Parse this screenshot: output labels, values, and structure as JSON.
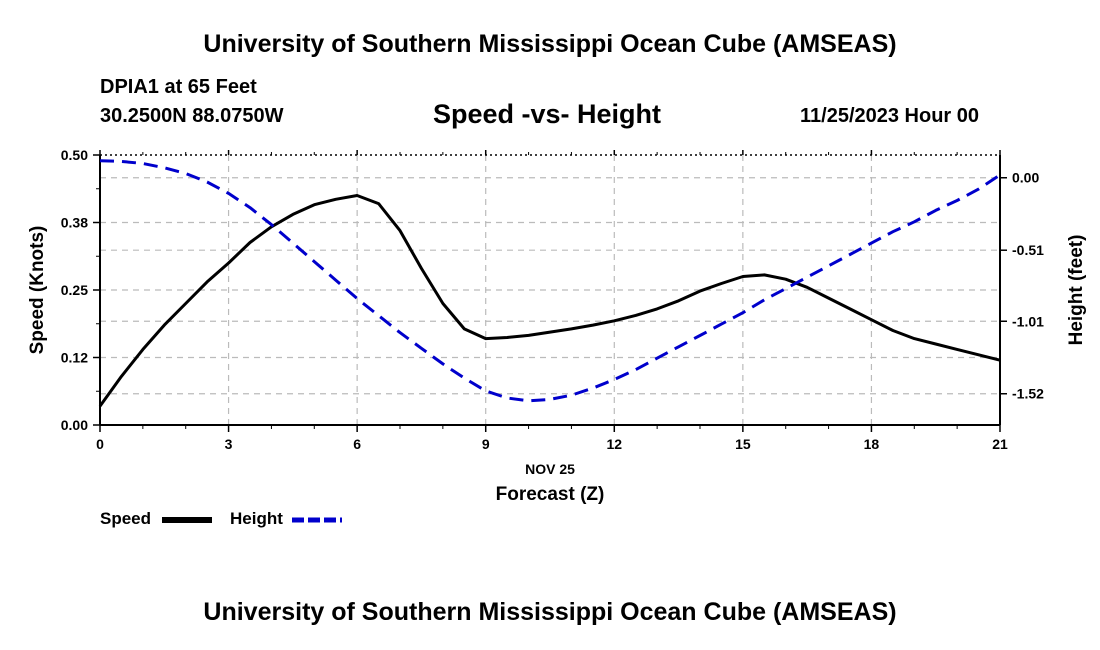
{
  "header": {
    "title": "University of Southern Mississippi Ocean Cube (AMSEAS)",
    "station": "DPIA1 at 65 Feet",
    "coords": "30.2500N  88.0750W",
    "chart_title": "Speed -vs- Height",
    "date_hour": "11/25/2023 Hour 00"
  },
  "footer": {
    "title": "University of Southern Mississippi Ocean Cube (AMSEAS)"
  },
  "legend": {
    "speed_label": "Speed",
    "height_label": "Height"
  },
  "colors": {
    "speed": "#000000",
    "height": "#0000cc",
    "grid": "#bbbbbb"
  },
  "chart_data": {
    "type": "line",
    "title": "Speed -vs- Height",
    "xlabel_date": "NOV 25",
    "xlabel": "Forecast (Z)",
    "ylabel": "Speed (Knots)",
    "ylabel_right": "Height (feet)",
    "xlim": [
      0,
      21
    ],
    "ylim": [
      0,
      0.5
    ],
    "ylim_right": [
      -1.74,
      0.16
    ],
    "x_ticks": [
      0,
      3,
      6,
      9,
      12,
      15,
      18,
      21
    ],
    "y_tick_labels": [
      "0.00",
      "0.12",
      "0.25",
      "0.38",
      "0.50"
    ],
    "y_right_ticks": [
      0.0,
      -0.51,
      -1.01,
      -1.52
    ],
    "y_right_tick_labels": [
      "0.00",
      "-0.51",
      "-1.01",
      "-1.52"
    ],
    "grid": true,
    "series": [
      {
        "name": "Speed",
        "axis": "left",
        "style": "solid",
        "x": [
          0,
          0.5,
          1,
          1.5,
          2,
          2.5,
          3,
          3.5,
          4,
          4.5,
          5,
          5.5,
          6,
          6.5,
          7,
          7.5,
          8,
          8.5,
          9,
          9.5,
          10,
          10.5,
          11,
          11.5,
          12,
          12.5,
          13,
          13.5,
          14,
          14.5,
          15,
          15.5,
          16,
          16.5,
          17,
          17.5,
          18,
          18.5,
          19,
          19.5,
          20,
          20.5,
          21
        ],
        "values": [
          0.035,
          0.09,
          0.14,
          0.185,
          0.225,
          0.265,
          0.3,
          0.338,
          0.367,
          0.39,
          0.408,
          0.418,
          0.425,
          0.41,
          0.36,
          0.29,
          0.225,
          0.178,
          0.16,
          0.162,
          0.166,
          0.172,
          0.178,
          0.185,
          0.193,
          0.203,
          0.215,
          0.23,
          0.248,
          0.262,
          0.275,
          0.278,
          0.27,
          0.255,
          0.235,
          0.215,
          0.195,
          0.175,
          0.16,
          0.15,
          0.14,
          0.13,
          0.12
        ]
      },
      {
        "name": "Height",
        "axis": "right",
        "style": "dashed",
        "x": [
          0,
          0.5,
          1,
          1.5,
          2,
          2.5,
          3,
          3.5,
          4,
          4.5,
          5,
          5.5,
          6,
          6.5,
          7,
          7.5,
          8,
          8.5,
          9,
          9.5,
          10,
          10.5,
          11,
          11.5,
          12,
          12.5,
          13,
          13.5,
          14,
          14.5,
          15,
          15.5,
          16,
          16.5,
          17,
          17.5,
          18,
          18.5,
          19,
          19.5,
          20,
          20.5,
          21
        ],
        "values": [
          0.12,
          0.115,
          0.1,
          0.07,
          0.03,
          -0.03,
          -0.11,
          -0.21,
          -0.33,
          -0.46,
          -0.59,
          -0.72,
          -0.85,
          -0.97,
          -1.09,
          -1.2,
          -1.31,
          -1.41,
          -1.5,
          -1.55,
          -1.57,
          -1.56,
          -1.53,
          -1.48,
          -1.42,
          -1.35,
          -1.27,
          -1.19,
          -1.11,
          -1.03,
          -0.95,
          -0.86,
          -0.78,
          -0.7,
          -0.62,
          -0.54,
          -0.46,
          -0.38,
          -0.31,
          -0.23,
          -0.16,
          -0.08,
          0.02
        ]
      }
    ]
  }
}
